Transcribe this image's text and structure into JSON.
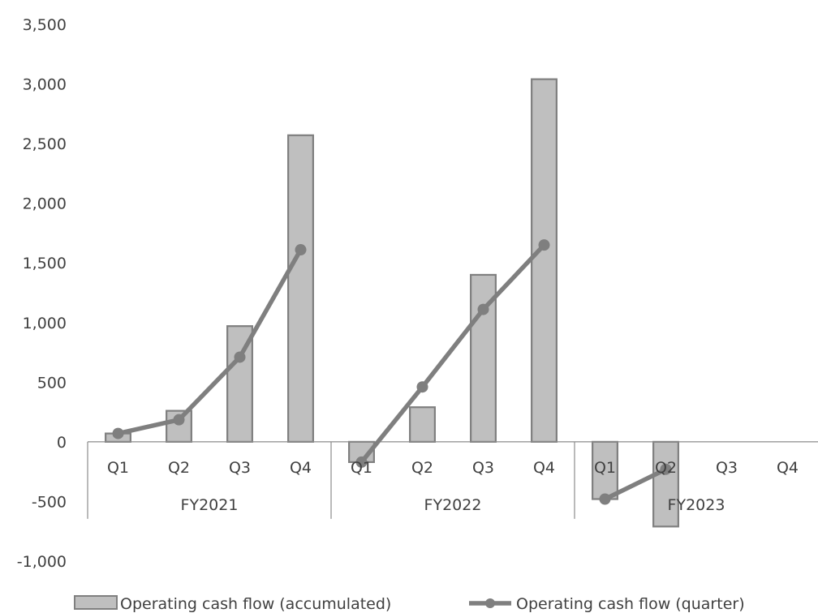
{
  "chart_data": {
    "type": "bar+line",
    "groups": [
      {
        "label": "FY2021",
        "quarters": [
          "Q1",
          "Q2",
          "Q3",
          "Q4"
        ]
      },
      {
        "label": "FY2022",
        "quarters": [
          "Q1",
          "Q2",
          "Q3",
          "Q4"
        ]
      },
      {
        "label": "FY2023",
        "quarters": [
          "Q1",
          "Q2",
          "Q3",
          "Q4"
        ]
      }
    ],
    "series": [
      {
        "name": "Operating cash flow (accumulated)",
        "type": "bar",
        "color": "#bfbfbf",
        "stroke": "#7f7f7f",
        "values": [
          70,
          260,
          970,
          2570,
          -170,
          290,
          1400,
          3040,
          -480,
          -710,
          null,
          null
        ]
      },
      {
        "name": "Operating cash flow (quarter)",
        "type": "line",
        "color": "#7f7f7f",
        "values": [
          70,
          185,
          710,
          1610,
          -170,
          460,
          1110,
          1650,
          -480,
          -230,
          null,
          null
        ]
      }
    ],
    "ylim": [
      -1000,
      3500
    ],
    "yticks": [
      3500,
      3000,
      2500,
      2000,
      1500,
      1000,
      500,
      0,
      -500,
      -1000
    ],
    "ytick_labels": [
      "3,500",
      "3,000",
      "2,500",
      "2,000",
      "1,500",
      "1,000",
      "500",
      "0",
      "-500",
      "-1,000"
    ],
    "grid": false,
    "legend_position": "bottom"
  }
}
